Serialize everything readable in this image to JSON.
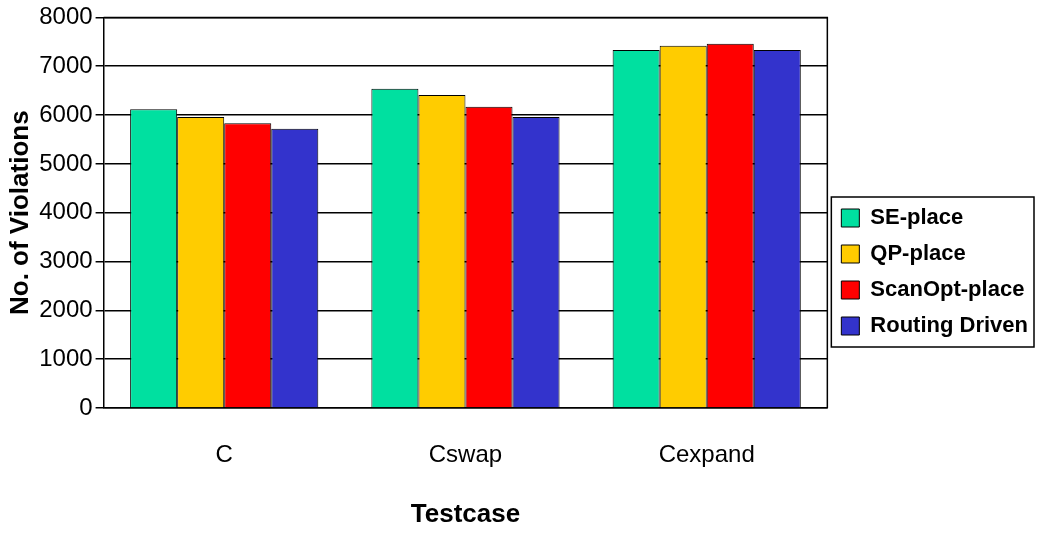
{
  "chart_data": {
    "type": "bar",
    "xlabel": "Testcase",
    "ylabel": "No. of Violations",
    "categories": [
      "C",
      "Cswap",
      "Cexpand"
    ],
    "series": [
      {
        "name": "SE-place",
        "color": "#00e0a0",
        "values": [
          6120,
          6540,
          7330
        ]
      },
      {
        "name": "QP-place",
        "color": "#ffcc00",
        "values": [
          5960,
          6410,
          7420
        ]
      },
      {
        "name": "ScanOpt-place",
        "color": "#ff0000",
        "values": [
          5830,
          6170,
          7460
        ]
      },
      {
        "name": "Routing Driven",
        "color": "#3333cc",
        "values": [
          5720,
          5960,
          7330
        ]
      }
    ],
    "ylim": [
      0,
      8000
    ],
    "yticks": [
      0,
      1000,
      2000,
      3000,
      4000,
      5000,
      6000,
      7000,
      8000
    ],
    "grid": "y",
    "legend": "right"
  }
}
